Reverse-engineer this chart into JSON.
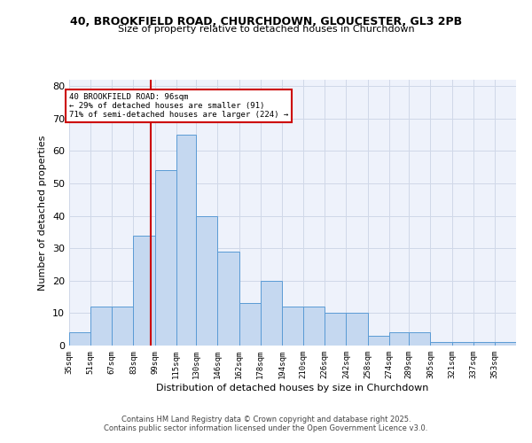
{
  "title1": "40, BROOKFIELD ROAD, CHURCHDOWN, GLOUCESTER, GL3 2PB",
  "title2": "Size of property relative to detached houses in Churchdown",
  "xlabel": "Distribution of detached houses by size in Churchdown",
  "ylabel": "Number of detached properties",
  "bar_labels": [
    "35sqm",
    "51sqm",
    "67sqm",
    "83sqm",
    "99sqm",
    "115sqm",
    "130sqm",
    "146sqm",
    "162sqm",
    "178sqm",
    "194sqm",
    "210sqm",
    "226sqm",
    "242sqm",
    "258sqm",
    "274sqm",
    "289sqm",
    "305sqm",
    "321sqm",
    "337sqm",
    "353sqm"
  ],
  "bar_values": [
    4,
    12,
    12,
    34,
    54,
    65,
    40,
    29,
    13,
    20,
    12,
    12,
    10,
    10,
    3,
    4,
    4,
    1,
    1,
    1,
    1
  ],
  "bar_color": "#c5d8f0",
  "bar_edge_color": "#5a9bd5",
  "property_line_x": 96,
  "bin_edges": [
    35,
    51,
    67,
    83,
    99,
    115,
    130,
    146,
    162,
    178,
    194,
    210,
    226,
    242,
    258,
    274,
    289,
    305,
    321,
    337,
    353,
    369
  ],
  "annotation_text": "40 BROOKFIELD ROAD: 96sqm\n← 29% of detached houses are smaller (91)\n71% of semi-detached houses are larger (224) →",
  "annotation_box_color": "#ffffff",
  "annotation_box_edge": "#cc0000",
  "red_line_color": "#cc0000",
  "grid_color": "#d0d8e8",
  "bg_color": "#eef2fb",
  "ylim": [
    0,
    82
  ],
  "yticks": [
    0,
    10,
    20,
    30,
    40,
    50,
    60,
    70,
    80
  ],
  "footer1": "Contains HM Land Registry data © Crown copyright and database right 2025.",
  "footer2": "Contains public sector information licensed under the Open Government Licence v3.0."
}
